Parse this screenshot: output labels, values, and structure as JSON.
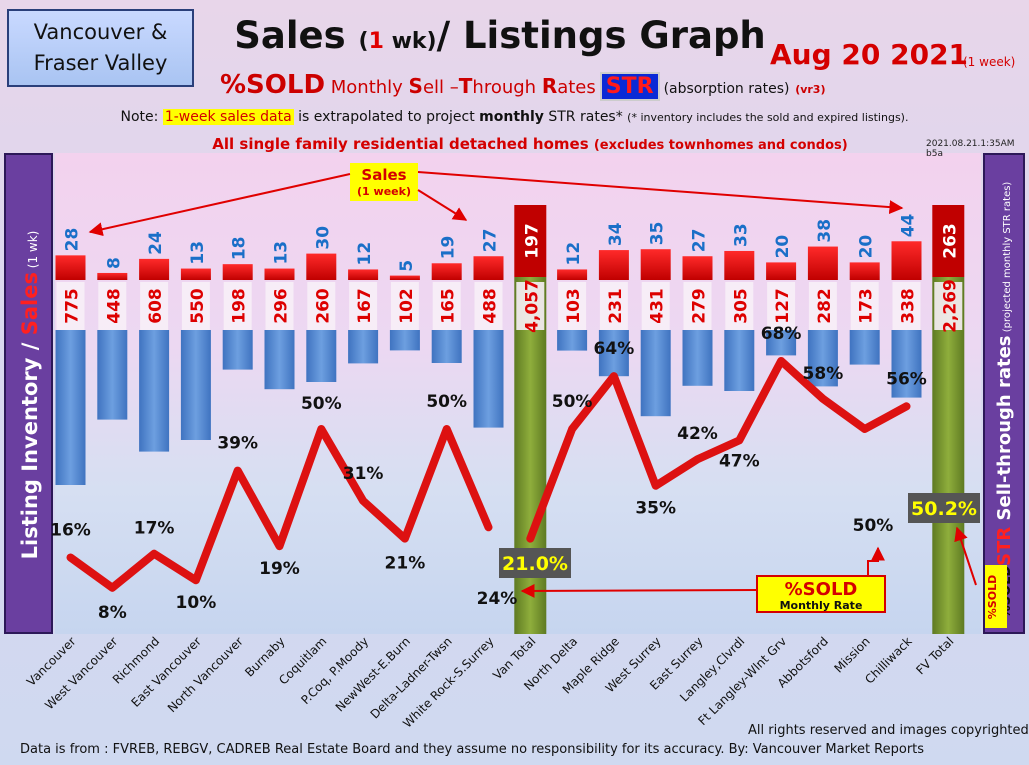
{
  "region": {
    "line1": "Vancouver &",
    "line2": "Fraser Valley"
  },
  "title": {
    "main_a": "Sales",
    "paren_open": "(",
    "paren_num": "1",
    "paren_rest": " wk)",
    "main_b": "/ Listings Graph"
  },
  "date": {
    "text": "Aug 20  2021",
    "note": "(1 week)"
  },
  "subtitle": {
    "pct_sold": "%SOLD",
    "monthly": " Monthly ",
    "s": "S",
    "ell": "ell –",
    "t": "T",
    "hrough": "hrough ",
    "r": "R",
    "ates": "ates",
    "str": "STR",
    "absorption": "(absorption rates)",
    "version": "(vr3)"
  },
  "note": {
    "prefix": "Note: ",
    "highlight": "1-week sales data",
    "middle": " is extrapolated to project ",
    "monthly": "monthly",
    "after": " STR rates* ",
    "tiny": "(* inventory includes the sold and expired listings)."
  },
  "homes_note": {
    "main": "All single family residential detached homes ",
    "sub": "(excludes townhomes and condos)"
  },
  "stamp": "2021.08.21.1:35AM b5a",
  "left_axis": {
    "part1": "Listing Inventory / ",
    "part2": "Sales",
    "part3": " (1 wk)"
  },
  "right_axis": {
    "pct_sold": "%SOLD",
    "str": "STR",
    "main": " Sell-through rates",
    "sub": " (projected monthly STR rates)"
  },
  "callouts": {
    "sales_line1": "Sales",
    "sales_line2": "(1 week)",
    "pct_sold_line1": "%SOLD",
    "pct_sold_line2": "Monthly Rate"
  },
  "rights": "All rights reserved and  images copyrighted",
  "source": "Data is from : FVREB, REBGV, CADREB Real Estate Board and they assume no responsibility for its accuracy. By: Vancouver Market Reports",
  "colors": {
    "sales_bar": "#ee0000",
    "inventory_bar": "#4f86d0",
    "total_bar": "#7a9a30",
    "str_line": "#dd1111",
    "sales_label": "#1a6fc8",
    "inventory_label": "#dd0000",
    "total_label_box": "#c00000"
  },
  "chart_data": {
    "type": "bar",
    "categories": [
      "Vancouver",
      "West Vancouver",
      "Richmond",
      "East Vancouver",
      "North Vancouver",
      "Burnaby",
      "Coquitlam",
      "P.Coq, P.Moody",
      "NewWest-E.Burn",
      "Delta-Ladner-Twsn",
      "White Rock-S.Surrey",
      "Van Total",
      "North Delta",
      "Maple Ridge",
      "West Surrey",
      "East Surrey",
      "Langley,Clvrdl",
      "Ft Langley-Wlnt Grv",
      "Abbotsford",
      "Mission",
      "Chilliwack",
      "FV Total"
    ],
    "series": [
      {
        "name": "Sales",
        "values": [
          28,
          8,
          24,
          13,
          18,
          13,
          30,
          12,
          5,
          19,
          27,
          197,
          12,
          34,
          35,
          27,
          33,
          20,
          38,
          20,
          44,
          263
        ]
      },
      {
        "name": "Listing Inventory",
        "values": [
          775,
          448,
          608,
          550,
          198,
          296,
          260,
          167,
          102,
          165,
          488,
          4057,
          103,
          231,
          431,
          279,
          305,
          127,
          282,
          173,
          338,
          2269
        ]
      },
      {
        "name": "%SOLD",
        "values": [
          16,
          8,
          17,
          10,
          39,
          19,
          50,
          31,
          21,
          50,
          24,
          21.0,
          50,
          64,
          35,
          42,
          47,
          68,
          58,
          50,
          56,
          50.2
        ]
      }
    ],
    "inventory_labels": [
      "775",
      "448",
      "608",
      "550",
      "198",
      "296",
      "260",
      "167",
      "102",
      "165",
      "488",
      "4,057",
      "103",
      "231",
      "431",
      "279",
      "305",
      "127",
      "282",
      "173",
      "338",
      "2,269"
    ],
    "str_labels": [
      "16%",
      "8%",
      "17%",
      "10%",
      "39%",
      "19%",
      "50%",
      "31%",
      "21%",
      "50%",
      "24%",
      "21.0%",
      "50%",
      "64%",
      "35%",
      "42%",
      "47%",
      "68%",
      "58%",
      "50%",
      "56%",
      "50.2%"
    ],
    "total_indices": [
      11,
      21
    ],
    "title": "Sales (1 wk)/ Listings Graph",
    "xlabel": "",
    "ylabel": "Listing Inventory / Sales (1 wk)",
    "y2label": "%SOLD STR Sell-through rates (projected monthly STR rates)",
    "legend": "none"
  }
}
